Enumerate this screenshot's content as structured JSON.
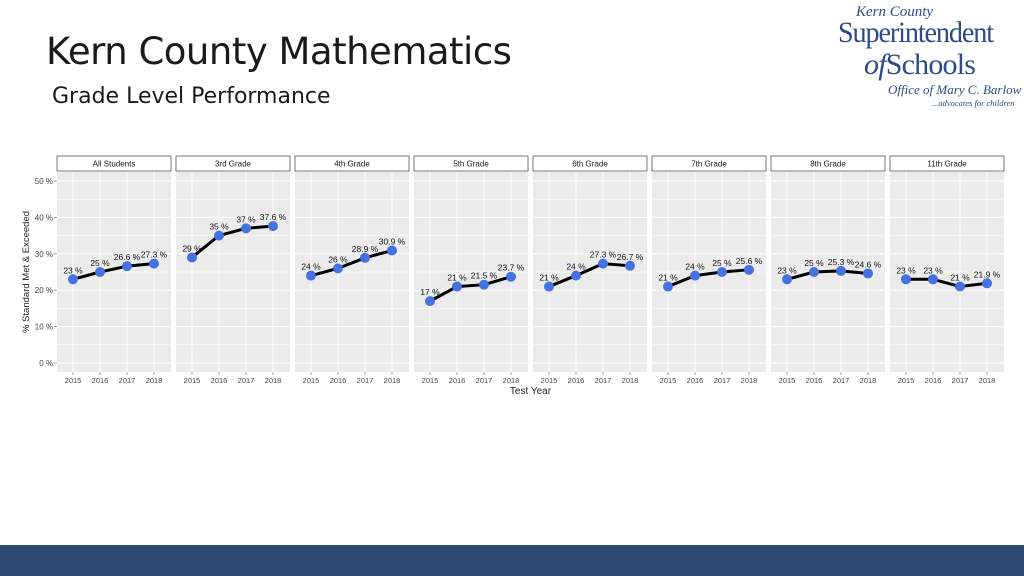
{
  "slide": {
    "title": "Kern County Mathematics",
    "subtitle": "Grade Level Performance"
  },
  "logo": {
    "line1": "Kern County",
    "line2": "Superintendent",
    "line3_of": "of",
    "line3_schools": "Schools",
    "line4": "Office of Mary C. Barlow",
    "line5": "...advocates for children"
  },
  "colors": {
    "panel_bg": "#ebebeb",
    "grid": "#ffffff",
    "line": "#000000",
    "point": "#4472e0",
    "footer": "#2c4a72",
    "logo": "#2d4b8a"
  },
  "chart_data": {
    "type": "line",
    "xlabel": "Test Year",
    "ylabel": "% Standard Met & Exceeded",
    "ylim": [
      0,
      50
    ],
    "yticks": [
      "0 %",
      "10 %",
      "20 %",
      "30 %",
      "40 %",
      "50 %"
    ],
    "ytick_values": [
      0,
      10,
      20,
      30,
      40,
      50
    ],
    "grid": true,
    "legend": "none",
    "panels": [
      {
        "name": "All Students",
        "x": [
          "2015",
          "2016",
          "2017",
          "2018"
        ],
        "values": [
          23,
          25,
          26.6,
          27.3
        ],
        "labels": [
          "23 %",
          "25 %",
          "26.6 %",
          "27.3 %"
        ]
      },
      {
        "name": "3rd Grade",
        "x": [
          "2015",
          "2016",
          "2017",
          "2018"
        ],
        "values": [
          29,
          35,
          37,
          37.6
        ],
        "labels": [
          "29 %",
          "35 %",
          "37 %",
          "37.6 %"
        ]
      },
      {
        "name": "4th Grade",
        "x": [
          "2015",
          "2016",
          "2017",
          "2018"
        ],
        "values": [
          24,
          26,
          28.9,
          30.9
        ],
        "labels": [
          "24 %",
          "26 %",
          "28.9 %",
          "30.9 %"
        ]
      },
      {
        "name": "5th Grade",
        "x": [
          "2015",
          "2016",
          "2017",
          "2018"
        ],
        "values": [
          17,
          21,
          21.5,
          23.7
        ],
        "labels": [
          "17 %",
          "21 %",
          "21.5 %",
          "23.7 %"
        ]
      },
      {
        "name": "6th Grade",
        "x": [
          "2015",
          "2016",
          "2017",
          "2018"
        ],
        "values": [
          21,
          24,
          27.3,
          26.7
        ],
        "labels": [
          "21 %",
          "24 %",
          "27.3 %",
          "26.7 %"
        ]
      },
      {
        "name": "7th Grade",
        "x": [
          "2015",
          "2016",
          "2017",
          "2018"
        ],
        "values": [
          21,
          24,
          25,
          25.6
        ],
        "labels": [
          "21 %",
          "24 %",
          "25 %",
          "25.6 %"
        ]
      },
      {
        "name": "8th Grade",
        "x": [
          "2015",
          "2016",
          "2017",
          "2018"
        ],
        "values": [
          23,
          25,
          25.3,
          24.6
        ],
        "labels": [
          "23 %",
          "25 %",
          "25.3 %",
          "24.6 %"
        ]
      },
      {
        "name": "11th Grade",
        "x": [
          "2015",
          "2016",
          "2017",
          "2018"
        ],
        "values": [
          23,
          23,
          21,
          21.9
        ],
        "labels": [
          "23 %",
          "23 %",
          "21 %",
          "21.9 %"
        ]
      }
    ]
  }
}
